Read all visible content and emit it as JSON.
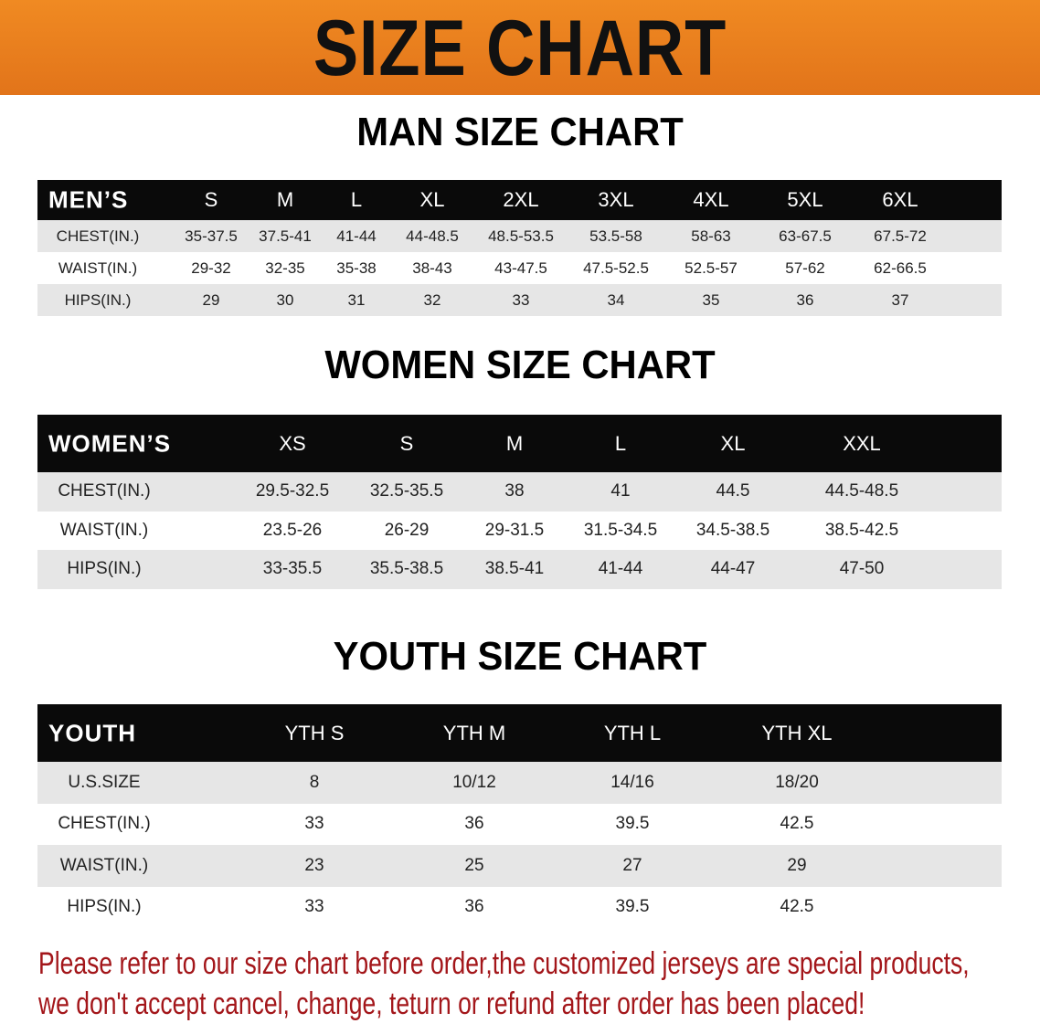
{
  "banner_title": "SIZE CHART",
  "men": {
    "title": "MAN SIZE CHART",
    "header_label": "MEN’S",
    "sizes": [
      "S",
      "M",
      "L",
      "XL",
      "2XL",
      "3XL",
      "4XL",
      "5XL",
      "6XL"
    ],
    "rows": [
      {
        "label": "CHEST(IN.)",
        "values": [
          "35-37.5",
          "37.5-41",
          "41-44",
          "44-48.5",
          "48.5-53.5",
          "53.5-58",
          "58-63",
          "63-67.5",
          "67.5-72"
        ]
      },
      {
        "label": "WAIST(IN.)",
        "values": [
          "29-32",
          "32-35",
          "35-38",
          "38-43",
          "43-47.5",
          "47.5-52.5",
          "52.5-57",
          "57-62",
          "62-66.5"
        ]
      },
      {
        "label": "HIPS(IN.)",
        "values": [
          "29",
          "30",
          "31",
          "32",
          "33",
          "34",
          "35",
          "36",
          "37"
        ]
      }
    ]
  },
  "women": {
    "title": "WOMEN SIZE CHART",
    "header_label": "WOMEN’S",
    "sizes": [
      "XS",
      "S",
      "M",
      "L",
      "XL",
      "XXL"
    ],
    "rows": [
      {
        "label": "CHEST(IN.)",
        "values": [
          "29.5-32.5",
          "32.5-35.5",
          "38",
          "41",
          "44.5",
          "44.5-48.5"
        ]
      },
      {
        "label": "WAIST(IN.)",
        "values": [
          "23.5-26",
          "26-29",
          "29-31.5",
          "31.5-34.5",
          "34.5-38.5",
          "38.5-42.5"
        ]
      },
      {
        "label": "HIPS(IN.)",
        "values": [
          "33-35.5",
          "35.5-38.5",
          "38.5-41",
          "41-44",
          "44-47",
          "47-50"
        ]
      }
    ]
  },
  "youth": {
    "title": "YOUTH SIZE CHART",
    "header_label": "YOUTH",
    "sizes": [
      "YTH S",
      "YTH M",
      "YTH L",
      "YTH XL"
    ],
    "rows": [
      {
        "label": "U.S.SIZE",
        "values": [
          "8",
          "10/12",
          "14/16",
          "18/20"
        ]
      },
      {
        "label": "CHEST(IN.)",
        "values": [
          "33",
          "36",
          "39.5",
          "42.5"
        ]
      },
      {
        "label": "WAIST(IN.)",
        "values": [
          "23",
          "25",
          "27",
          "29"
        ]
      },
      {
        "label": "HIPS(IN.)",
        "values": [
          "33",
          "36",
          "39.5",
          "42.5"
        ]
      }
    ]
  },
  "note": {
    "line1": "Please refer to our size chart before order,the customized jerseys are special products,",
    "line2": "we don't accept cancel, change, teturn or refund after order has been placed!",
    "color": "#a3161a"
  }
}
